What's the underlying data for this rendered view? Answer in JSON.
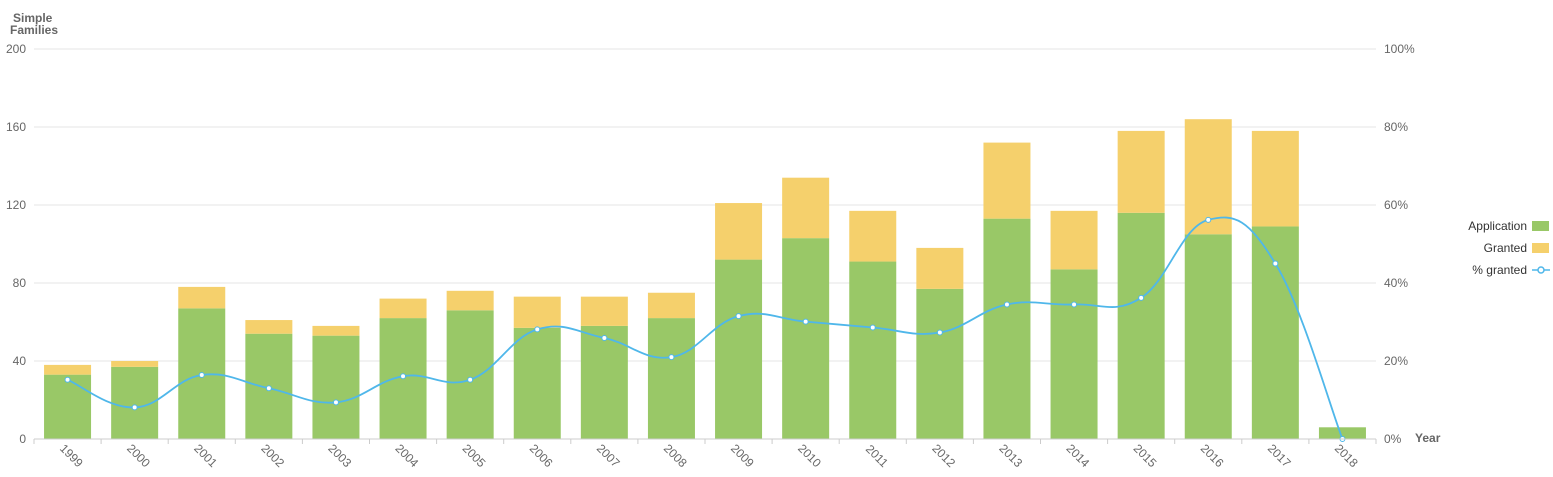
{
  "chart_data": {
    "type": "bar",
    "stacked": true,
    "y_axis_left": {
      "title_line1": "Simple",
      "title_line2": "Families",
      "ticks": [
        "0",
        "40",
        "80",
        "120",
        "160",
        "200"
      ],
      "ylim": [
        0,
        200
      ]
    },
    "y_axis_right": {
      "ticks": [
        "0%",
        "20%",
        "40%",
        "60%",
        "80%",
        "100%"
      ],
      "ylim": [
        0,
        100
      ]
    },
    "x_axis": {
      "title": "Year"
    },
    "categories": [
      "1999",
      "2000",
      "2001",
      "2002",
      "2003",
      "2004",
      "2005",
      "2006",
      "2007",
      "2008",
      "2009",
      "2010",
      "2011",
      "2012",
      "2013",
      "2014",
      "2015",
      "2016",
      "2017",
      "2018"
    ],
    "series": [
      {
        "name": "Application",
        "kind": "bar",
        "color": "#99c867",
        "values": [
          33,
          37,
          67,
          54,
          53,
          62,
          66,
          57,
          58,
          62,
          92,
          103,
          91,
          77,
          113,
          87,
          116,
          105,
          109,
          6
        ]
      },
      {
        "name": "Granted",
        "kind": "bar",
        "color": "#f5d06c",
        "values": [
          5,
          3,
          11,
          7,
          5,
          10,
          10,
          16,
          15,
          13,
          29,
          31,
          26,
          21,
          39,
          30,
          42,
          59,
          49,
          0
        ]
      },
      {
        "name": "% granted",
        "kind": "line",
        "color": "#4fb7ea",
        "values": [
          15.2,
          8.1,
          16.4,
          13.0,
          9.4,
          16.1,
          15.2,
          28.1,
          25.9,
          21.0,
          31.5,
          30.1,
          28.6,
          27.3,
          34.5,
          34.5,
          36.2,
          56.2,
          45.0,
          0
        ]
      }
    ],
    "legend_position": "right",
    "grid": true
  }
}
